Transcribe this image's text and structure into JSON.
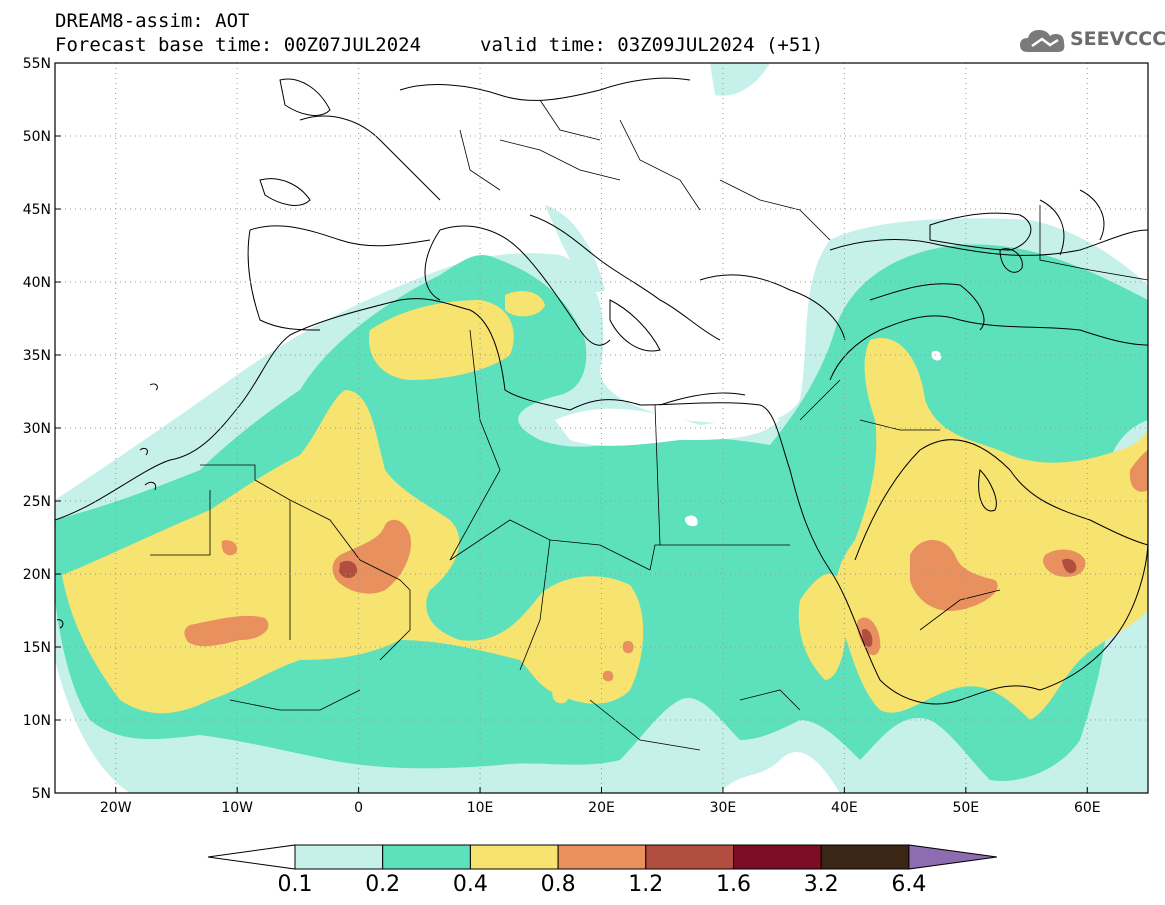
{
  "header": {
    "title_line1": "DREAM8-assim: AOT",
    "title_line2": "Forecast base time: 00Z07JUL2024",
    "valid_time": "valid time: 03Z09JUL2024 (+51)"
  },
  "logo": {
    "text": "SEEVCCC",
    "icon": "cloud-icon"
  },
  "axes": {
    "lat_labels": [
      "55N",
      "50N",
      "45N",
      "40N",
      "35N",
      "30N",
      "25N",
      "20N",
      "15N",
      "10N",
      "5N"
    ],
    "lat_values": [
      55,
      50,
      45,
      40,
      35,
      30,
      25,
      20,
      15,
      10,
      5
    ],
    "lon_labels": [
      "20W",
      "10W",
      "0",
      "10E",
      "20E",
      "30E",
      "40E",
      "50E",
      "60E"
    ],
    "lon_values": [
      -20,
      -10,
      0,
      10,
      20,
      30,
      40,
      50,
      60
    ],
    "lon_range": [
      -25,
      65
    ],
    "lat_range": [
      5,
      55
    ],
    "grid": "dotted"
  },
  "colorbar": {
    "labels": [
      "0.1",
      "0.2",
      "0.4",
      "0.8",
      "1.2",
      "1.6",
      "3.2",
      "6.4"
    ],
    "colors": [
      "#c6f0ea",
      "#5ce1bc",
      "#f7e36f",
      "#e9905f",
      "#b24e3f",
      "#7d0d25",
      "#3b2615",
      "#8e6cb0"
    ],
    "under_color": "#ffffff"
  },
  "palette": {
    "ocean": "#ffffff",
    "level_1": "#c6f0ea",
    "level_2": "#5ce1bc",
    "level_3": "#f7e36f",
    "level_4": "#e9905f",
    "level_5": "#b24e3f",
    "level_6": "#7d0d25"
  }
}
